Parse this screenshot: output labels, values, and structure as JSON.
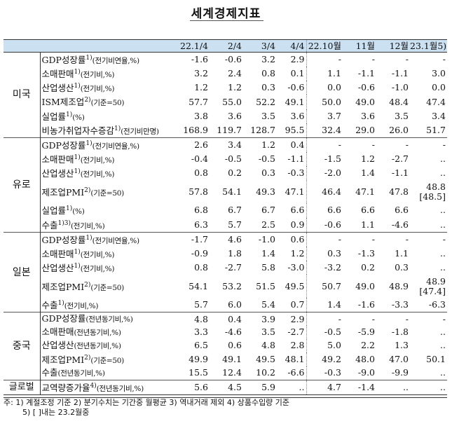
{
  "title": "세계경제지표",
  "headers": [
    "",
    "",
    "22.1/4",
    "2/4",
    "3/4",
    "4/4",
    "22.10월",
    "11월",
    "12월",
    "23.1월5)"
  ],
  "groups": [
    {
      "country": "미국",
      "rows": [
        {
          "label": "GDP성장률",
          "sup": "1)",
          "sub": "(전기비연율,%)",
          "values": [
            "-1.6",
            "-0.6",
            "3.2",
            "2.9",
            "-",
            "-",
            "-",
            "-"
          ]
        },
        {
          "label": "소매판매",
          "sup": "1)",
          "sub": "(전기비,%)",
          "values": [
            "3.2",
            "2.4",
            "0.8",
            "0.1",
            "1.1",
            "-1.1",
            "-1.1",
            "3.0"
          ]
        },
        {
          "label": "산업생산",
          "sup": "1)",
          "sub": "(전기비,%)",
          "values": [
            "1.2",
            "1.2",
            "0.3",
            "-0.6",
            "0.0",
            "-0.6",
            "-1.0",
            "0.0"
          ]
        },
        {
          "label": "ISM제조업",
          "sup": "2)",
          "sub": "(기준=50)",
          "values": [
            "57.7",
            "55.0",
            "52.2",
            "49.1",
            "50.0",
            "49.0",
            "48.4",
            "47.4"
          ]
        },
        {
          "label": "실업률",
          "sup": "1)",
          "sub": "(%)",
          "values": [
            "3.8",
            "3.6",
            "3.5",
            "3.6",
            "3.7",
            "3.6",
            "3.5",
            "3.4"
          ]
        },
        {
          "label": "비농가취업자수증감",
          "sup": "1)",
          "sub": "(전기비만명)",
          "values": [
            "168.9",
            "119.7",
            "128.7",
            "95.5",
            "32.4",
            "29.0",
            "26.0",
            "51.7"
          ]
        }
      ]
    },
    {
      "country": "유로",
      "rows": [
        {
          "label": "GDP성장률",
          "sup": "1)",
          "sub": "(전기비연율,%)",
          "values": [
            "2.6",
            "3.4",
            "1.2",
            "0.4",
            "-",
            "-",
            "-",
            "-"
          ]
        },
        {
          "label": "소매판매",
          "sup": "1)",
          "sub": "(전기비,%)",
          "values": [
            "-0.4",
            "-0.5",
            "-0.5",
            "-1.1",
            "-1.5",
            "1.2",
            "-2.7",
            ".."
          ]
        },
        {
          "label": "산업생산",
          "sup": "1)",
          "sub": "(전기비,%)",
          "values": [
            "0.8",
            "0.2",
            "0.3",
            "-0.3",
            "-2.0",
            "1.4",
            "-1.1",
            ".."
          ]
        },
        {
          "label": "제조업PMI",
          "sup": "2)",
          "sub": "(기준=50)",
          "values": [
            "57.8",
            "54.1",
            "49.3",
            "47.1",
            "46.4",
            "47.1",
            "47.8",
            "48.8"
          ],
          "extra": "[48.5]"
        },
        {
          "label": "실업률",
          "sup": "1)",
          "sub": "(%)",
          "values": [
            "6.8",
            "6.7",
            "6.7",
            "6.6",
            "6.6",
            "6.6",
            "6.6",
            ".."
          ]
        },
        {
          "label": "수출",
          "sup": "1)3)",
          "sub": "(전기비,%)",
          "values": [
            "6.3",
            "5.7",
            "2.5",
            "0.9",
            "-0.6",
            "1.1",
            "-4.6",
            ".."
          ]
        }
      ]
    },
    {
      "country": "일본",
      "rows": [
        {
          "label": "GDP성장률",
          "sup": "1)",
          "sub": "(전기비연율,%)",
          "values": [
            "-1.7",
            "4.6",
            "-1.0",
            "0.6",
            "-",
            "-",
            "-",
            "-"
          ]
        },
        {
          "label": "소매판매",
          "sup": "1)",
          "sub": "(전기비,%)",
          "values": [
            "-0.9",
            "1.8",
            "1.4",
            "1.2",
            "0.3",
            "-1.3",
            "1.1",
            ".."
          ]
        },
        {
          "label": "산업생산",
          "sup": "1)",
          "sub": "(전기비,%)",
          "values": [
            "0.8",
            "-2.7",
            "5.8",
            "-3.0",
            "-3.2",
            "0.2",
            "0.3",
            ".."
          ]
        },
        {
          "label": "제조업PMI",
          "sup": "2)",
          "sub": "(기준=50)",
          "values": [
            "54.1",
            "53.2",
            "51.5",
            "49.5",
            "50.7",
            "49.0",
            "48.9",
            "48.9"
          ],
          "extra": "[47.4]"
        },
        {
          "label": "수출",
          "sup": "1)",
          "sub": "(전기비,%)",
          "values": [
            "5.7",
            "6.0",
            "5.4",
            "0.7",
            "1.4",
            "-1.6",
            "-3.3",
            "-6.3"
          ]
        }
      ]
    },
    {
      "country": "중국",
      "rows": [
        {
          "label": "GDP성장률",
          "sup": "",
          "sub": "(전년동기비,%)",
          "values": [
            "4.8",
            "0.4",
            "3.9",
            "2.9",
            "-",
            "-",
            "-",
            "-"
          ]
        },
        {
          "label": "소매판매",
          "sup": "",
          "sub": "(전년동기비,%)",
          "values": [
            "3.3",
            "-4.6",
            "3.5",
            "-2.7",
            "-0.5",
            "-5.9",
            "-1.8",
            ".."
          ]
        },
        {
          "label": "산업생산",
          "sup": "",
          "sub": "(전년동기비,%)",
          "values": [
            "6.5",
            "0.6",
            "4.8",
            "2.8",
            "5.0",
            "2.2",
            "1.3",
            ".."
          ]
        },
        {
          "label": "제조업PMI",
          "sup": "2)",
          "sub": "(기준=50)",
          "values": [
            "49.9",
            "49.1",
            "49.5",
            "48.1",
            "49.2",
            "48.0",
            "47.0",
            "50.1"
          ]
        },
        {
          "label": "수출",
          "sup": "",
          "sub": "(전년동기비,%)",
          "values": [
            "15.5",
            "12.4",
            "10.2",
            "-6.6",
            "-0.3",
            "-9.0",
            "-9.9",
            ".."
          ]
        }
      ]
    }
  ],
  "global_row": {
    "country": "글로벌",
    "label": "교역량증가율",
    "sup": "4)",
    "sub": "(전년동기비,%)",
    "values": [
      "5.6",
      "4.5",
      "5.9",
      "..",
      "4.7",
      "-1.4",
      "..",
      ".."
    ]
  },
  "notes": {
    "line1": "주: 1) 계절조정 기준 2) 분기수치는 기간중 월평균 3) 역내거래 제외   4) 상품수입량 기준",
    "line2": "5) [ ]내는 23.2월중"
  }
}
